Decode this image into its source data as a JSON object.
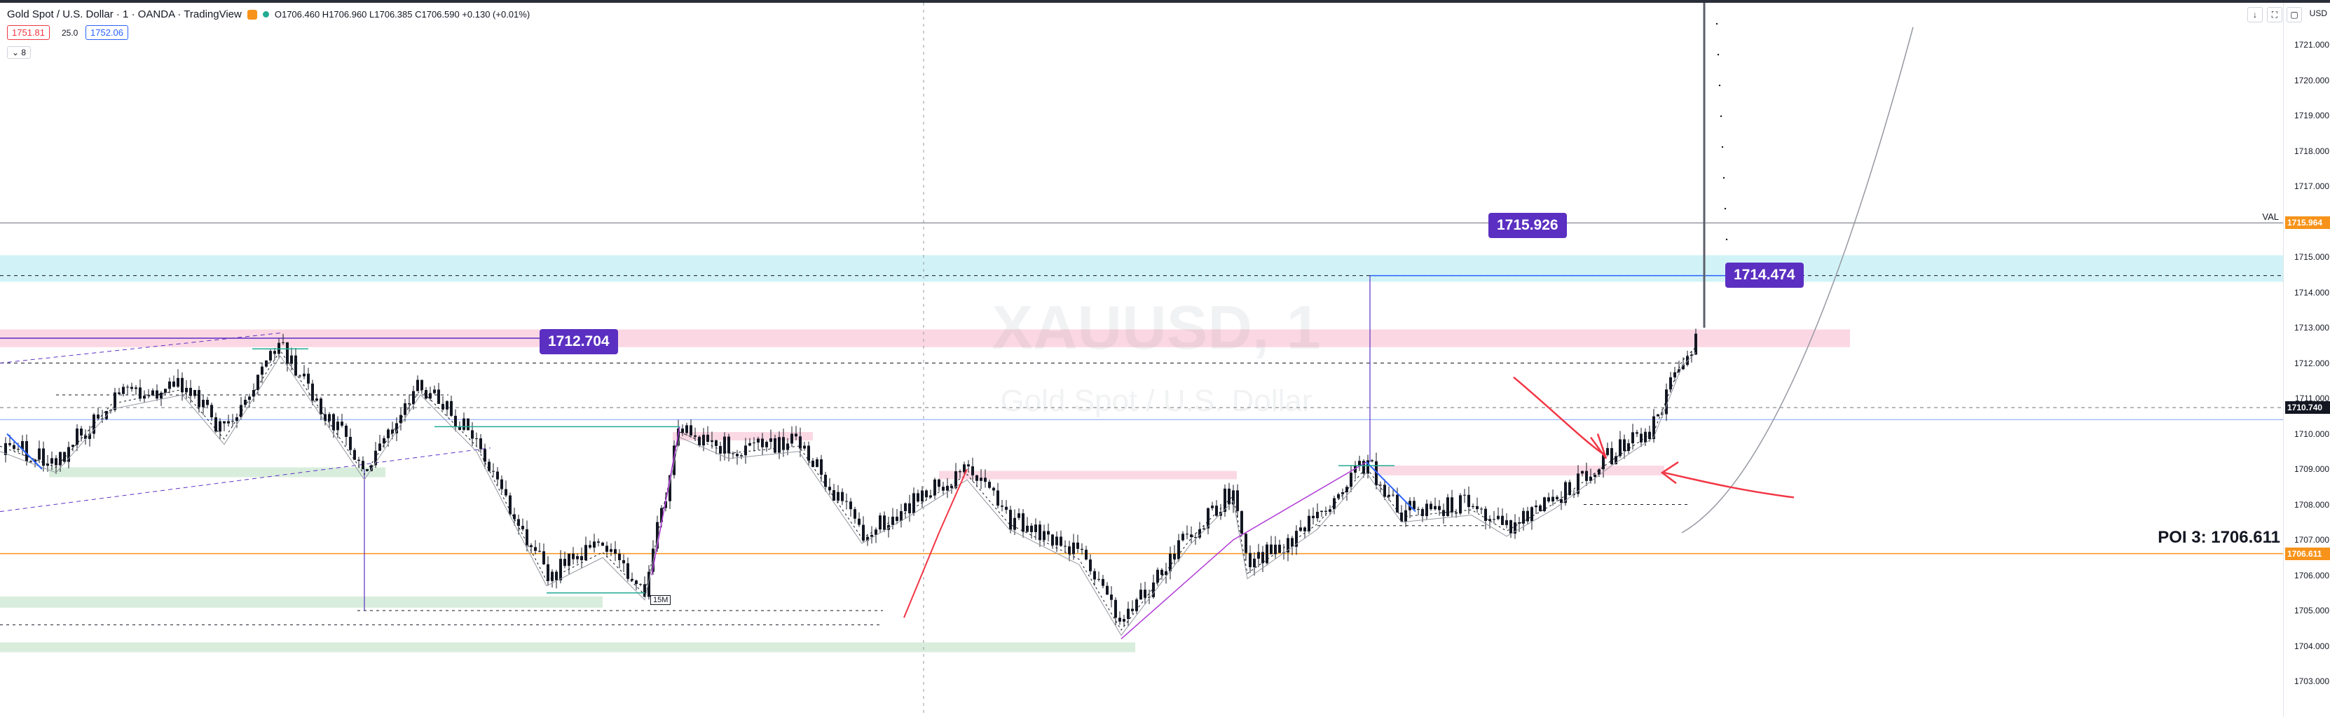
{
  "header": {
    "title": "Gold Spot / U.S. Dollar · 1 · OANDA · TradingView",
    "ohlc": "O1706.460 H1706.960 L1706.385 C1706.590 +0.130 (+0.01%)",
    "sell_price": "1751.81",
    "spread": "25.0",
    "buy_price": "1752.06",
    "collapse_label": "8",
    "currency": "USD"
  },
  "watermark": {
    "symbol": "XAUUSD, 1",
    "description": "Gold Spot / U.S. Dollar"
  },
  "labels": {
    "level_1": "1715.926",
    "level_2": "1714.474",
    "level_3": "1712.704",
    "poi": "POI 3: 1706.611",
    "val": "VAL",
    "tf_tag": "15M"
  },
  "price_axis": {
    "ticks": [
      "1721.000",
      "1720.000",
      "1719.000",
      "1718.000",
      "1717.000",
      "1716.000",
      "1715.000",
      "1714.000",
      "1713.000",
      "1712.000",
      "1711.000",
      "1710.000",
      "1709.000",
      "1708.000",
      "1707.000",
      "1706.000",
      "1705.000",
      "1704.000",
      "1703.000"
    ],
    "tag_val": "1715.964",
    "tag_current": "1710.740",
    "tag_poi": "1706.611"
  },
  "colors": {
    "purple_label": "#5b2fc1",
    "pink_zone": "#f9c9d9",
    "blue_zone": "#b2ebf2",
    "green_zone": "#cfe8d4",
    "orange_line": "#f7931a",
    "up_candle": "#131722",
    "down_candle": "#131722"
  },
  "window_buttons": [
    "down-arrow-icon",
    "fullscreen-icon",
    "screenshot-icon"
  ]
}
